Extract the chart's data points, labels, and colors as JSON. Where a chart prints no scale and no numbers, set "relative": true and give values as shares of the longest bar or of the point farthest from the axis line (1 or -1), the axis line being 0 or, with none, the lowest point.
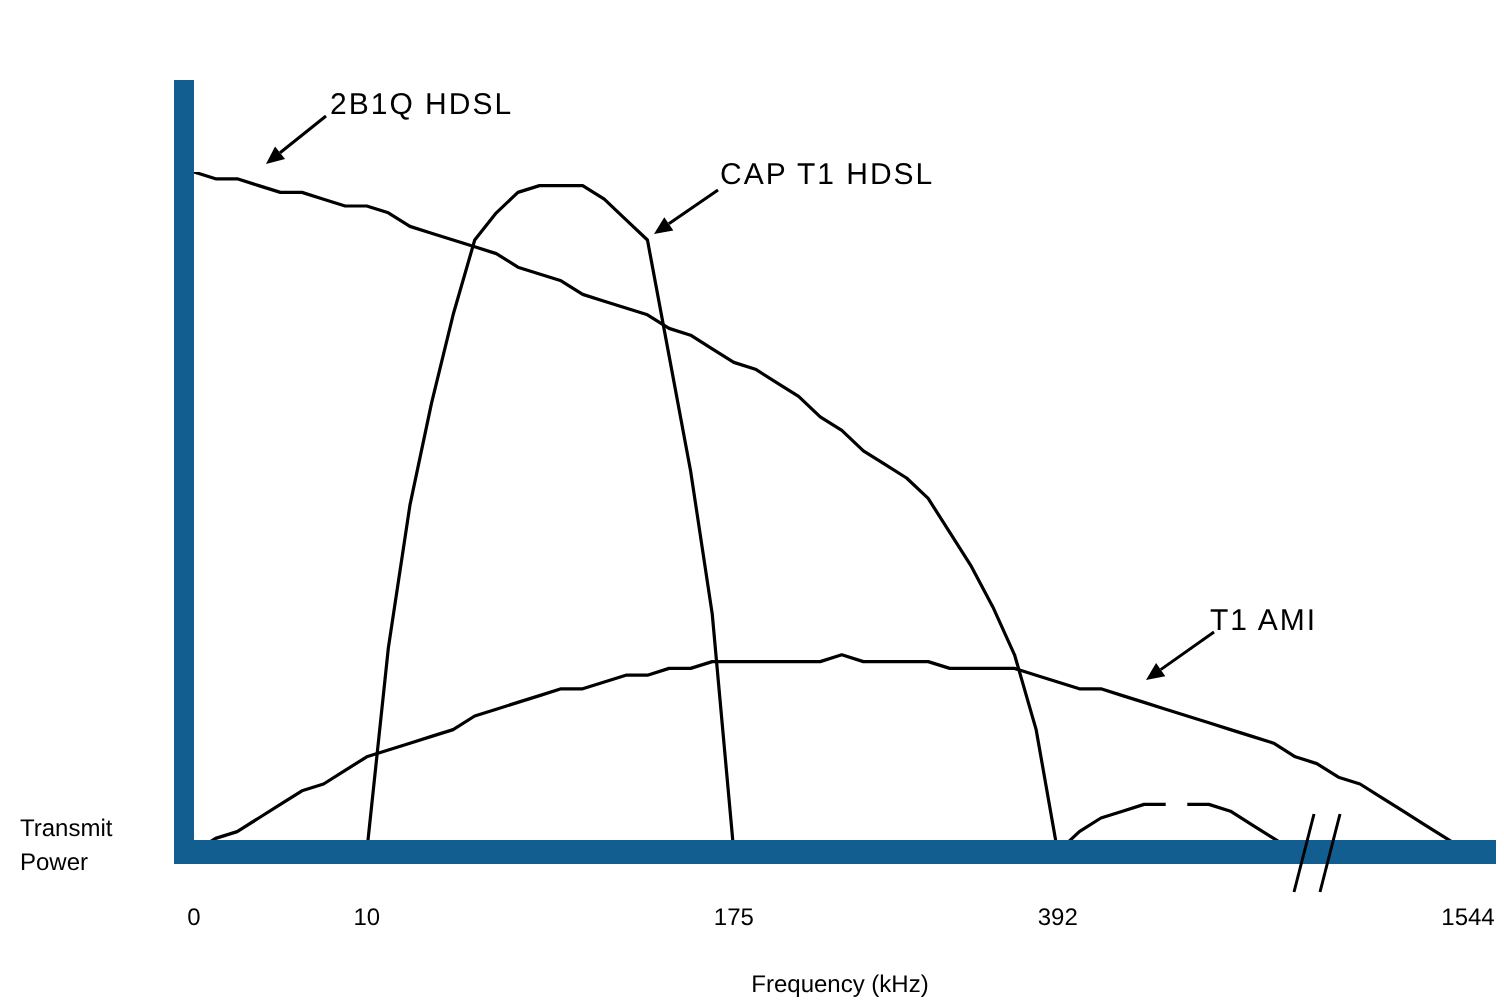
{
  "chart_data": {
    "type": "line",
    "relative": true,
    "xlabel": "Frequency (kHz)",
    "ylabel": "Transmit Power",
    "categories": [
      "0",
      null,
      null,
      null,
      null,
      null,
      null,
      null,
      "10",
      null,
      null,
      null,
      null,
      null,
      null,
      null,
      null,
      null,
      null,
      null,
      null,
      null,
      null,
      null,
      null,
      "175",
      null,
      null,
      null,
      null,
      null,
      null,
      null,
      null,
      null,
      null,
      null,
      null,
      null,
      null,
      "392",
      null,
      null,
      null,
      null,
      null,
      null,
      null,
      null,
      null,
      null,
      null,
      null,
      null,
      null,
      null,
      null,
      null,
      null,
      "1544"
    ],
    "series": [
      {
        "name": "2B1Q HDSL",
        "color": "#000000",
        "values": [
          1,
          0.99,
          0.99,
          0.98,
          0.97,
          0.97,
          0.96,
          0.95,
          0.95,
          0.94,
          0.92,
          0.91,
          0.9,
          0.89,
          0.88,
          0.86,
          0.85,
          0.84,
          0.82,
          0.81,
          0.8,
          0.79,
          0.77,
          0.76,
          0.74,
          0.72,
          0.71,
          0.69,
          0.67,
          0.64,
          0.62,
          0.59,
          0.57,
          0.55,
          0.52,
          0.47,
          0.42,
          0.36,
          0.29,
          0.18,
          0,
          null,
          null,
          null,
          null,
          null,
          null,
          null,
          null,
          null,
          null,
          null,
          null,
          null,
          null,
          null,
          null,
          null,
          null,
          null
        ]
      },
      {
        "name": "CAP T1 HDSL",
        "color": "#000000",
        "values": [
          null,
          null,
          null,
          null,
          null,
          null,
          null,
          null,
          0,
          0.3,
          0.51,
          0.66,
          0.79,
          0.9,
          0.94,
          0.97,
          0.98,
          0.98,
          0.98,
          0.96,
          0.93,
          0.9,
          0.73,
          0.56,
          0.35,
          0,
          null,
          null,
          null,
          null,
          null,
          null,
          null,
          null,
          null,
          null,
          null,
          null,
          null,
          null,
          null,
          null,
          null,
          null,
          null,
          null,
          null,
          null,
          null,
          null,
          null,
          null,
          null,
          null,
          null,
          null,
          null,
          null,
          null,
          null
        ]
      },
      {
        "name": "T1 AMI",
        "color": "#000000",
        "values": [
          0,
          0.02,
          0.03,
          0.05,
          0.07,
          0.09,
          0.1,
          0.12,
          0.14,
          0.15,
          0.16,
          0.17,
          0.18,
          0.2,
          0.21,
          0.22,
          0.23,
          0.24,
          0.24,
          0.25,
          0.26,
          0.26,
          0.27,
          0.27,
          0.28,
          0.28,
          0.28,
          0.28,
          0.28,
          0.28,
          0.29,
          0.28,
          0.28,
          0.28,
          0.28,
          0.27,
          0.27,
          0.27,
          0.27,
          0.26,
          0.25,
          0.24,
          0.24,
          0.23,
          0.22,
          0.21,
          0.2,
          0.19,
          0.18,
          0.17,
          0.16,
          0.14,
          0.13,
          0.11,
          0.1,
          0.08,
          0.06,
          0.04,
          0.02,
          0
        ]
      },
      {
        "color": "#000000",
        "values": [
          null,
          null,
          null,
          null,
          null,
          null,
          null,
          null,
          null,
          null,
          null,
          null,
          null,
          null,
          null,
          null,
          null,
          null,
          null,
          null,
          null,
          null,
          null,
          null,
          null,
          null,
          null,
          null,
          null,
          null,
          null,
          null,
          null,
          null,
          null,
          null,
          null,
          null,
          null,
          null,
          0,
          0.03,
          0.05,
          0.06,
          0.07,
          0.07,
          null,
          null,
          null,
          null,
          null,
          null,
          null,
          null,
          null,
          null,
          null,
          null,
          null,
          null
        ]
      },
      {
        "color": "#000000",
        "values": [
          null,
          null,
          null,
          null,
          null,
          null,
          null,
          null,
          null,
          null,
          null,
          null,
          null,
          null,
          null,
          null,
          null,
          null,
          null,
          null,
          null,
          null,
          null,
          null,
          null,
          null,
          null,
          null,
          null,
          null,
          null,
          null,
          null,
          null,
          null,
          null,
          null,
          null,
          null,
          null,
          null,
          null,
          null,
          null,
          null,
          null,
          0.07,
          0.07,
          0.06,
          0.04,
          0.02,
          0,
          null,
          null,
          null,
          null,
          null,
          null,
          null,
          null
        ]
      }
    ]
  }
}
